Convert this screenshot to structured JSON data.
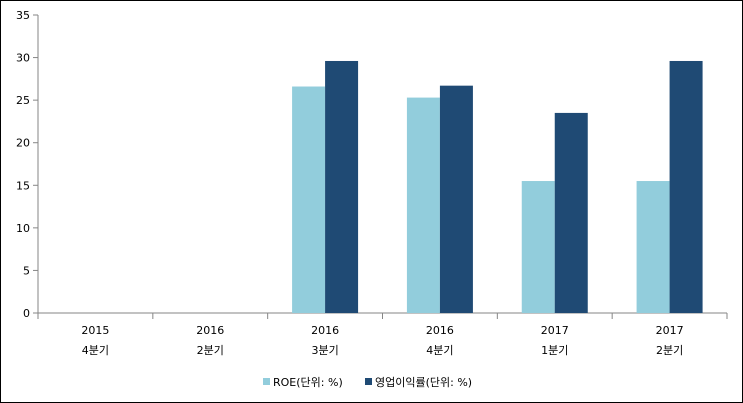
{
  "chart_data": {
    "type": "bar",
    "categories": [
      [
        "2015",
        "4분기"
      ],
      [
        "2016",
        "2분기"
      ],
      [
        "2016",
        "3분기"
      ],
      [
        "2016",
        "4분기"
      ],
      [
        "2017",
        "1분기"
      ],
      [
        "2017",
        "2분기"
      ]
    ],
    "series": [
      {
        "name": "ROE(단위: %)",
        "color": "#92CDDC",
        "values": [
          0,
          0,
          26.6,
          25.3,
          15.5,
          15.5
        ]
      },
      {
        "name": "영업이익률(단위: %)",
        "color": "#1F4A74",
        "values": [
          0,
          0,
          29.6,
          26.7,
          23.5,
          29.6
        ]
      }
    ],
    "yticks": [
      0,
      5,
      10,
      15,
      20,
      25,
      30,
      35
    ],
    "ylim": [
      0,
      35
    ],
    "grid": false,
    "legend_position": "bottom"
  }
}
